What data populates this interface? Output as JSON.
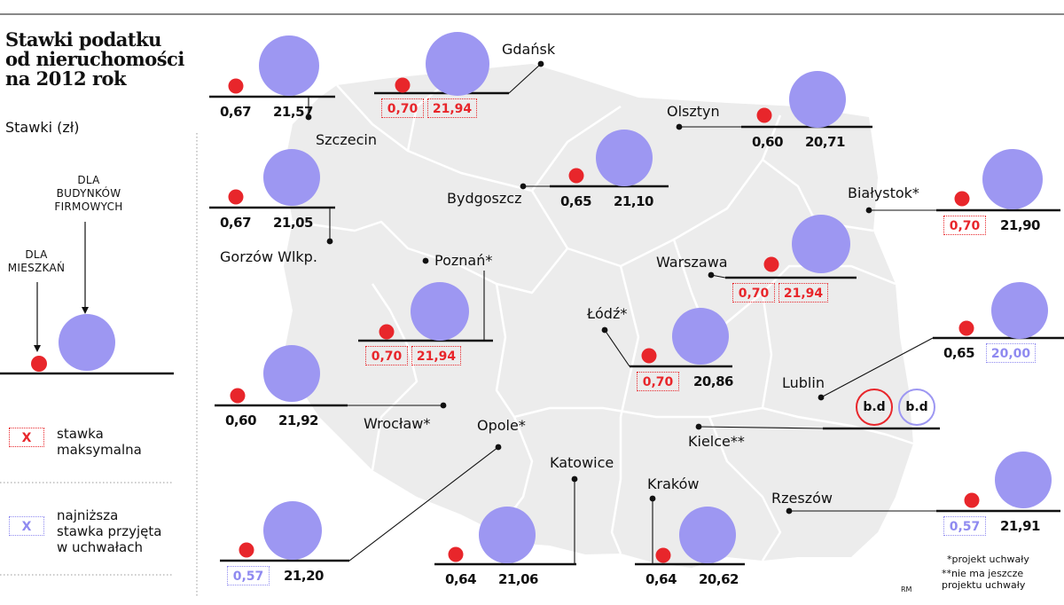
{
  "title": "Stawki podatku\nod nieruchomości\nna 2012 rok",
  "subtitle": "Stawki (zł)",
  "legend": {
    "business_caption": "DLA\nBUDYNKÓW\nFIRMOWYCH",
    "residential_caption": "DLA\nMIESZKAŃ",
    "max_sample": "X",
    "max_label": "stawka\nmaksymalna",
    "min_sample": "X",
    "min_label": "najniższa\nstawka przyjęta\nw uchwałach"
  },
  "colors": {
    "residential": "#e8262b",
    "business": "#9d97f2",
    "map_fill": "#ececec",
    "map_border": "#ffffff",
    "max_highlight": "#e8262b",
    "min_highlight": "#8f8af0"
  },
  "cities": [
    {
      "name": "Gdańsk",
      "residential": "0,70",
      "business": "21,94",
      "res_mark": "max",
      "bus_mark": "max"
    },
    {
      "name": "Szczecin",
      "residential": "0,67",
      "business": "21,57",
      "res_mark": "",
      "bus_mark": ""
    },
    {
      "name": "Olsztyn",
      "residential": "0,60",
      "business": "20,71",
      "res_mark": "",
      "bus_mark": ""
    },
    {
      "name": "Bydgoszcz",
      "residential": "0,65",
      "business": "21,10",
      "res_mark": "",
      "bus_mark": ""
    },
    {
      "name": "Białystok*",
      "residential": "0,70",
      "business": "21,90",
      "res_mark": "max",
      "bus_mark": ""
    },
    {
      "name": "Gorzów Wlkp.",
      "residential": "0,67",
      "business": "21,05",
      "res_mark": "",
      "bus_mark": ""
    },
    {
      "name": "Poznań*",
      "residential": "0,70",
      "business": "21,94",
      "res_mark": "max",
      "bus_mark": "max"
    },
    {
      "name": "Warszawa",
      "residential": "0,70",
      "business": "21,94",
      "res_mark": "max",
      "bus_mark": "max"
    },
    {
      "name": "Łódź*",
      "residential": "0,70",
      "business": "20,86",
      "res_mark": "max",
      "bus_mark": ""
    },
    {
      "name": "Lublin",
      "residential": "0,65",
      "business": "20,00",
      "res_mark": "",
      "bus_mark": "min"
    },
    {
      "name": "Wrocław*",
      "residential": "0,60",
      "business": "21,92",
      "res_mark": "",
      "bus_mark": ""
    },
    {
      "name": "Kielce**",
      "residential": "b.d",
      "business": "b.d",
      "res_mark": "",
      "bus_mark": ""
    },
    {
      "name": "Opole*",
      "residential": "0,57",
      "business": "21,20",
      "res_mark": "min",
      "bus_mark": ""
    },
    {
      "name": "Katowice",
      "residential": "0,64",
      "business": "21,06",
      "res_mark": "",
      "bus_mark": ""
    },
    {
      "name": "Kraków",
      "residential": "0,64",
      "business": "20,62",
      "res_mark": "",
      "bus_mark": ""
    },
    {
      "name": "Rzeszów",
      "residential": "0,57",
      "business": "21,91",
      "res_mark": "min",
      "bus_mark": ""
    }
  ],
  "footnotes": {
    "single": "*projekt uchwały",
    "double": "**nie ma jeszcze\n  projektu uchwały"
  },
  "credit": "RM"
}
